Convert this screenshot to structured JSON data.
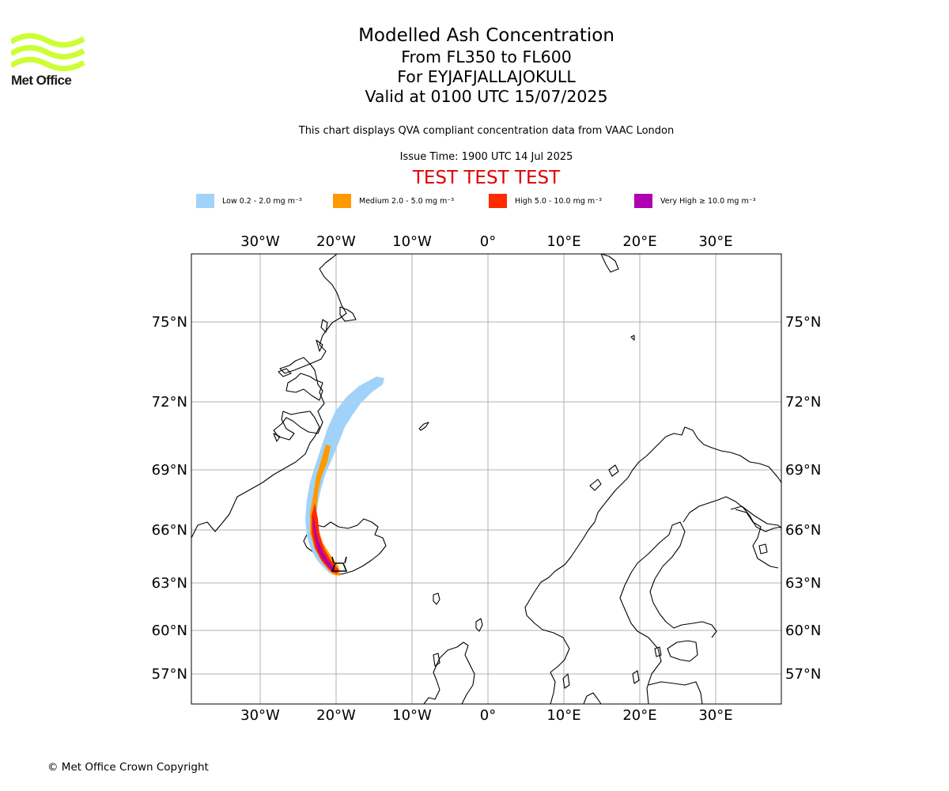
{
  "logo": {
    "text": "Met Office",
    "color": "#ccff33"
  },
  "title": {
    "line1": "Modelled Ash Concentration",
    "line2": "From FL350 to FL600",
    "line3": "For EYJAFJALLAJOKULL",
    "line4": "Valid at 0100 UTC 15/07/2025"
  },
  "subtitle": "This chart displays QVA compliant concentration data from VAAC London",
  "issue_time": "Issue Time: 1900 UTC 14 Jul 2025",
  "test_banner": "TEST TEST TEST",
  "legend": [
    {
      "label": "Low 0.2 - 2.0 mg m⁻³",
      "color": "#a0d2fa"
    },
    {
      "label": "Medium 2.0 - 5.0 mg m⁻³",
      "color": "#ff9900"
    },
    {
      "label": "High 5.0 - 10.0 mg m⁻³",
      "color": "#ff2a00"
    },
    {
      "label": "Very High ≥ 10.0 mg m⁻³",
      "color": "#b000b0"
    }
  ],
  "map": {
    "lon_labels": [
      "30°W",
      "20°W",
      "10°W",
      "0°",
      "10°E",
      "20°E",
      "30°E"
    ],
    "lat_labels": [
      "75°N",
      "72°N",
      "69°N",
      "66°N",
      "63°N",
      "60°N",
      "57°N"
    ],
    "gridline_color": "#b0b0b0"
  },
  "copyright": "© Met Office Crown Copyright"
}
